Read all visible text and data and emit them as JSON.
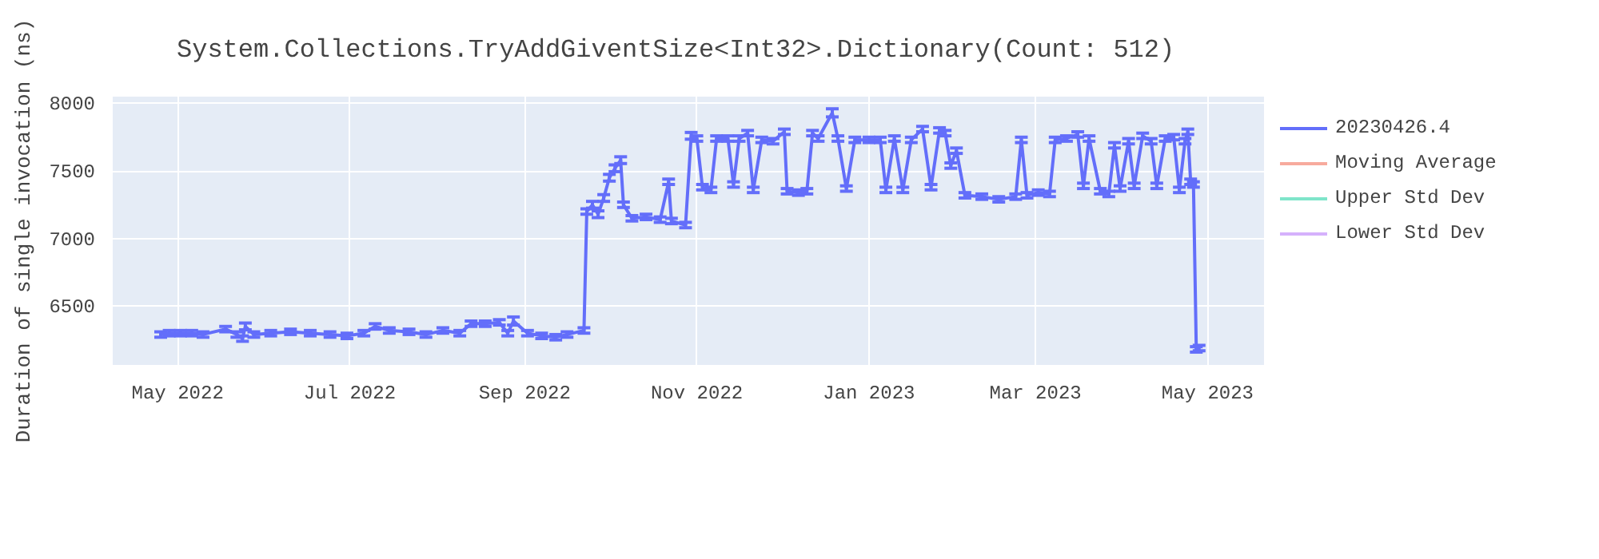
{
  "chart_data": {
    "type": "line",
    "title": "System.Collections.TryAddGiventSize<Int32>.Dictionary(Count: 512)",
    "ylabel": "Duration of single invocation (ns)",
    "x": [
      "2022-04-25",
      "2022-04-28",
      "2022-05-02",
      "2022-05-06",
      "2022-05-10",
      "2022-05-18",
      "2022-05-22",
      "2022-05-24",
      "2022-05-25",
      "2022-05-28",
      "2022-06-03",
      "2022-06-10",
      "2022-06-17",
      "2022-06-24",
      "2022-06-30",
      "2022-07-06",
      "2022-07-10",
      "2022-07-15",
      "2022-07-22",
      "2022-07-28",
      "2022-08-03",
      "2022-08-09",
      "2022-08-13",
      "2022-08-18",
      "2022-08-23",
      "2022-08-26",
      "2022-08-28",
      "2022-09-02",
      "2022-09-07",
      "2022-09-12",
      "2022-09-16",
      "2022-09-22",
      "2022-09-23",
      "2022-09-25",
      "2022-09-27",
      "2022-09-29",
      "2022-10-01",
      "2022-10-03",
      "2022-10-05",
      "2022-10-06",
      "2022-10-09",
      "2022-10-14",
      "2022-10-19",
      "2022-10-22",
      "2022-10-23",
      "2022-10-28",
      "2022-10-30",
      "2022-11-01",
      "2022-11-03",
      "2022-11-06",
      "2022-11-08",
      "2022-11-12",
      "2022-11-14",
      "2022-11-16",
      "2022-11-19",
      "2022-11-21",
      "2022-11-24",
      "2022-11-28",
      "2022-12-02",
      "2022-12-03",
      "2022-12-07",
      "2022-12-10",
      "2022-12-12",
      "2022-12-14",
      "2022-12-19",
      "2022-12-21",
      "2022-12-24",
      "2022-12-27",
      "2023-01-01",
      "2023-01-05",
      "2023-01-07",
      "2023-01-10",
      "2023-01-13",
      "2023-01-16",
      "2023-01-20",
      "2023-01-23",
      "2023-01-26",
      "2023-01-28",
      "2023-01-30",
      "2023-02-01",
      "2023-02-04",
      "2023-02-10",
      "2023-02-16",
      "2023-02-22",
      "2023-02-24",
      "2023-02-26",
      "2023-03-02",
      "2023-03-06",
      "2023-03-08",
      "2023-03-12",
      "2023-03-16",
      "2023-03-18",
      "2023-03-20",
      "2023-03-24",
      "2023-03-27",
      "2023-03-29",
      "2023-03-31",
      "2023-04-03",
      "2023-04-05",
      "2023-04-08",
      "2023-04-11",
      "2023-04-13",
      "2023-04-16",
      "2023-04-19",
      "2023-04-21",
      "2023-04-23",
      "2023-04-24",
      "2023-04-25",
      "2023-04-26",
      "2023-04-27",
      "2023-04-28"
    ],
    "series": [
      {
        "name": "20230426.4",
        "color": "#636efa",
        "values": [
          6290,
          6300,
          6300,
          6300,
          6290,
          6330,
          6290,
          6260,
          6350,
          6290,
          6300,
          6310,
          6300,
          6290,
          6280,
          6300,
          6350,
          6320,
          6310,
          6290,
          6320,
          6300,
          6370,
          6370,
          6380,
          6300,
          6390,
          6300,
          6280,
          6270,
          6290,
          6320,
          7200,
          7250,
          7180,
          7300,
          7450,
          7520,
          7580,
          7250,
          7150,
          7160,
          7140,
          7420,
          7130,
          7100,
          7760,
          7740,
          7380,
          7360,
          7740,
          7740,
          7400,
          7740,
          7780,
          7360,
          7730,
          7720,
          7790,
          7350,
          7340,
          7350,
          7780,
          7740,
          7930,
          7740,
          7370,
          7730,
          7730,
          7730,
          7360,
          7740,
          7360,
          7730,
          7810,
          7380,
          7800,
          7780,
          7540,
          7650,
          7320,
          7310,
          7290,
          7310,
          7730,
          7320,
          7340,
          7330,
          7730,
          7740,
          7770,
          7390,
          7740,
          7350,
          7330,
          7690,
          7370,
          7720,
          7390,
          7760,
          7720,
          7390,
          7740,
          7750,
          7360,
          7720,
          7790,
          7420,
          7400,
          6180,
          6190
        ],
        "errors": [
          20,
          20,
          20,
          20,
          20,
          20,
          20,
          20,
          25,
          20,
          20,
          20,
          20,
          20,
          20,
          20,
          20,
          20,
          20,
          20,
          20,
          20,
          20,
          20,
          20,
          20,
          30,
          20,
          20,
          20,
          20,
          20,
          20,
          25,
          25,
          25,
          25,
          25,
          25,
          20,
          20,
          20,
          20,
          20,
          20,
          20,
          25,
          20,
          20,
          20,
          20,
          20,
          20,
          20,
          20,
          20,
          20,
          20,
          20,
          20,
          20,
          20,
          20,
          20,
          30,
          20,
          20,
          20,
          20,
          20,
          20,
          20,
          20,
          20,
          20,
          20,
          20,
          20,
          20,
          20,
          20,
          20,
          20,
          20,
          20,
          20,
          20,
          20,
          20,
          20,
          20,
          20,
          20,
          20,
          20,
          20,
          20,
          20,
          20,
          20,
          20,
          20,
          20,
          20,
          20,
          20,
          20,
          20,
          20,
          20,
          20
        ]
      },
      {
        "name": "Moving Average",
        "color": "#ef553b",
        "values": [
          null,
          null,
          null,
          null,
          null,
          null,
          null,
          null,
          null,
          null,
          null,
          null,
          null,
          null,
          null,
          null,
          null,
          null,
          null,
          null,
          null,
          null,
          null,
          null,
          null,
          null,
          null,
          null,
          null,
          null,
          null,
          null,
          null,
          null,
          null,
          null,
          null,
          null,
          null,
          null,
          null,
          null,
          null,
          null,
          null,
          null,
          null,
          null,
          null,
          null,
          null,
          null,
          null,
          null,
          null,
          null,
          null,
          null,
          null,
          null,
          null,
          null,
          null,
          null,
          null,
          null,
          null,
          null,
          null,
          null,
          null,
          null,
          null,
          null,
          null,
          null,
          null,
          null,
          null,
          null,
          null,
          null,
          null,
          null,
          null,
          null,
          null,
          null,
          null,
          null,
          null,
          null,
          null,
          null,
          null,
          null,
          null,
          null,
          null,
          null,
          null,
          null,
          null,
          null,
          null,
          null,
          null,
          null,
          null,
          null,
          null
        ]
      },
      {
        "name": "Upper Std Dev",
        "color": "#00cc96",
        "values": [
          null,
          null,
          null,
          null,
          null,
          null,
          null,
          null,
          null,
          null,
          null,
          null,
          null,
          null,
          null,
          null,
          null,
          null,
          null,
          null,
          null,
          null,
          null,
          null,
          null,
          null,
          null,
          null,
          null,
          null,
          null,
          null,
          null,
          null,
          null,
          null,
          null,
          null,
          null,
          null,
          null,
          null,
          null,
          null,
          null,
          null,
          null,
          null,
          null,
          null,
          null,
          null,
          null,
          null,
          null,
          null,
          null,
          null,
          null,
          null,
          null,
          null,
          null,
          null,
          null,
          null,
          null,
          null,
          null,
          null,
          null,
          null,
          null,
          null,
          null,
          null,
          null,
          null,
          null,
          null,
          null,
          null,
          null,
          null,
          null,
          null,
          null,
          null,
          null,
          null,
          null,
          null,
          null,
          null,
          null,
          null,
          null,
          null,
          null,
          null,
          null,
          null,
          null,
          null,
          null,
          null,
          null,
          null,
          null,
          null,
          null
        ]
      },
      {
        "name": "Lower Std Dev",
        "color": "#ab63fa",
        "values": [
          null,
          null,
          null,
          null,
          null,
          null,
          null,
          null,
          null,
          null,
          null,
          null,
          null,
          null,
          null,
          null,
          null,
          null,
          null,
          null,
          null,
          null,
          null,
          null,
          null,
          null,
          null,
          null,
          null,
          null,
          null,
          null,
          null,
          null,
          null,
          null,
          null,
          null,
          null,
          null,
          null,
          null,
          null,
          null,
          null,
          null,
          null,
          null,
          null,
          null,
          null,
          null,
          null,
          null,
          null,
          null,
          null,
          null,
          null,
          null,
          null,
          null,
          null,
          null,
          null,
          null,
          null,
          null,
          null,
          null,
          null,
          null,
          null,
          null,
          null,
          null,
          null,
          null,
          null,
          null,
          null,
          null,
          null,
          null,
          null,
          null,
          null,
          null,
          null,
          null,
          null,
          null,
          null,
          null,
          null,
          null,
          null,
          null,
          null,
          null,
          null,
          null,
          null,
          null,
          null,
          null,
          null,
          null,
          null,
          null,
          null
        ]
      }
    ],
    "xlim": [
      "2022-04-08",
      "2023-05-21"
    ],
    "xticks": [
      {
        "value": "2022-05-01",
        "label": "May 2022"
      },
      {
        "value": "2022-07-01",
        "label": "Jul 2022"
      },
      {
        "value": "2022-09-01",
        "label": "Sep 2022"
      },
      {
        "value": "2022-11-01",
        "label": "Nov 2022"
      },
      {
        "value": "2023-01-01",
        "label": "Jan 2023"
      },
      {
        "value": "2023-03-01",
        "label": "Mar 2023"
      },
      {
        "value": "2023-05-01",
        "label": "May 2023"
      }
    ],
    "ylim": [
      6065,
      8050
    ],
    "yticks": [
      6500,
      7000,
      7500,
      8000
    ],
    "grid": true,
    "legend": "top right",
    "marker": "none",
    "line_style": "solid"
  }
}
